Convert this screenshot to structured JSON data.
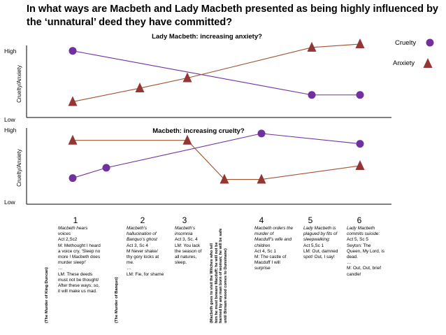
{
  "title": "In what ways are Macbeth and Lady Macbeth presented as being highly influenced by the ‘unnatural’ deed they have committed?",
  "legend": {
    "cruelty": "Cruelty",
    "anxiety": "Anxiety"
  },
  "colors": {
    "cruelty": "#7030a0",
    "anxiety": "#943634",
    "anxiety_line": "#a0522d",
    "axis": "#000000"
  },
  "chart_data": [
    {
      "type": "line",
      "title": "Lady Macbeth: increasing anxiety?",
      "ylabel": "Cruelty/Anxiety",
      "ytick_high": "High",
      "ytick_low": "Low",
      "ylim": [
        0,
        10
      ],
      "x": [
        1,
        2,
        3,
        4,
        5,
        6
      ],
      "series": [
        {
          "name": "Cruelty",
          "x": [
            1,
            5,
            6
          ],
          "values": [
            9,
            2.5,
            2.5
          ]
        },
        {
          "name": "Anxiety",
          "x": [
            1,
            2,
            3,
            5,
            6
          ],
          "values": [
            1.5,
            3.5,
            5,
            9.5,
            10
          ]
        }
      ]
    },
    {
      "type": "line",
      "title": "Macbeth: increasing cruelty?",
      "ylabel": "Cruelty/Anxiety",
      "ytick_high": "High",
      "ytick_low": "Low",
      "ylim": [
        0,
        10
      ],
      "x": [
        1,
        2,
        3,
        4,
        5,
        6
      ],
      "series": [
        {
          "name": "Cruelty",
          "x": [
            1,
            1.5,
            4,
            6
          ],
          "values": [
            3,
            4.5,
            9.5,
            8
          ]
        },
        {
          "name": "Anxiety",
          "x": [
            1,
            3,
            3.5,
            4,
            6
          ],
          "values": [
            8.5,
            8.5,
            2.8,
            2.8,
            4.8
          ]
        }
      ]
    }
  ],
  "xticks": [
    "1",
    "2",
    "3",
    "4",
    "5",
    "6"
  ],
  "annotations": [
    {
      "italic": "Macbeth hears voices",
      "body": "Act 2,Sc2\nM: Methought I heard a voice cry, ‘Sleep no more ! Macbeth does murder sleep!’\n…\nLM: These deeds must not be thought/ After these ways; so, it will make us mad."
    },
    {
      "italic": "Macbeth’s hallucination of Banquo’s ghost",
      "body": "Act 3, Sc 4\nM Never shake/ thy gory locks at me.\n…\nLM: Fie, for shame"
    },
    {
      "italic": "Macbeth’s insomnia",
      "body": "Act 3, Sc. 4\nLM: You lack the season of all natures, sleep."
    },
    {
      "italic": "Macbeth orders the murder of Macduff’s wife and children",
      "body": "Act 4, Sc 1\nM: The castle of Macduff I will surprise"
    },
    {
      "italic": "Lady Macbeth is plagued by fits of sleepwalking:",
      "body": "Act 5,Sc 1\nLM: Out, damned spot! Out, I say!"
    },
    {
      "italic": "Lady Macbeth commits suicide:",
      "body": "Act 5, Sc 5\nSeyton: The Queen, My Lord, is dead.\n…\nM: Out, Out, brief candle!"
    }
  ],
  "vertical_notes": {
    "duncan": "(The Murder of King Duncan)",
    "banquo": "(The Murder of Banquo)",
    "witches": "(Macbeth goes to visit the Witches who tell\nhim he must beware Macduff; he will not be\nharmed by any man born of woman; he will be safe\nuntil Birnam wood comes to Dunsinane)"
  }
}
